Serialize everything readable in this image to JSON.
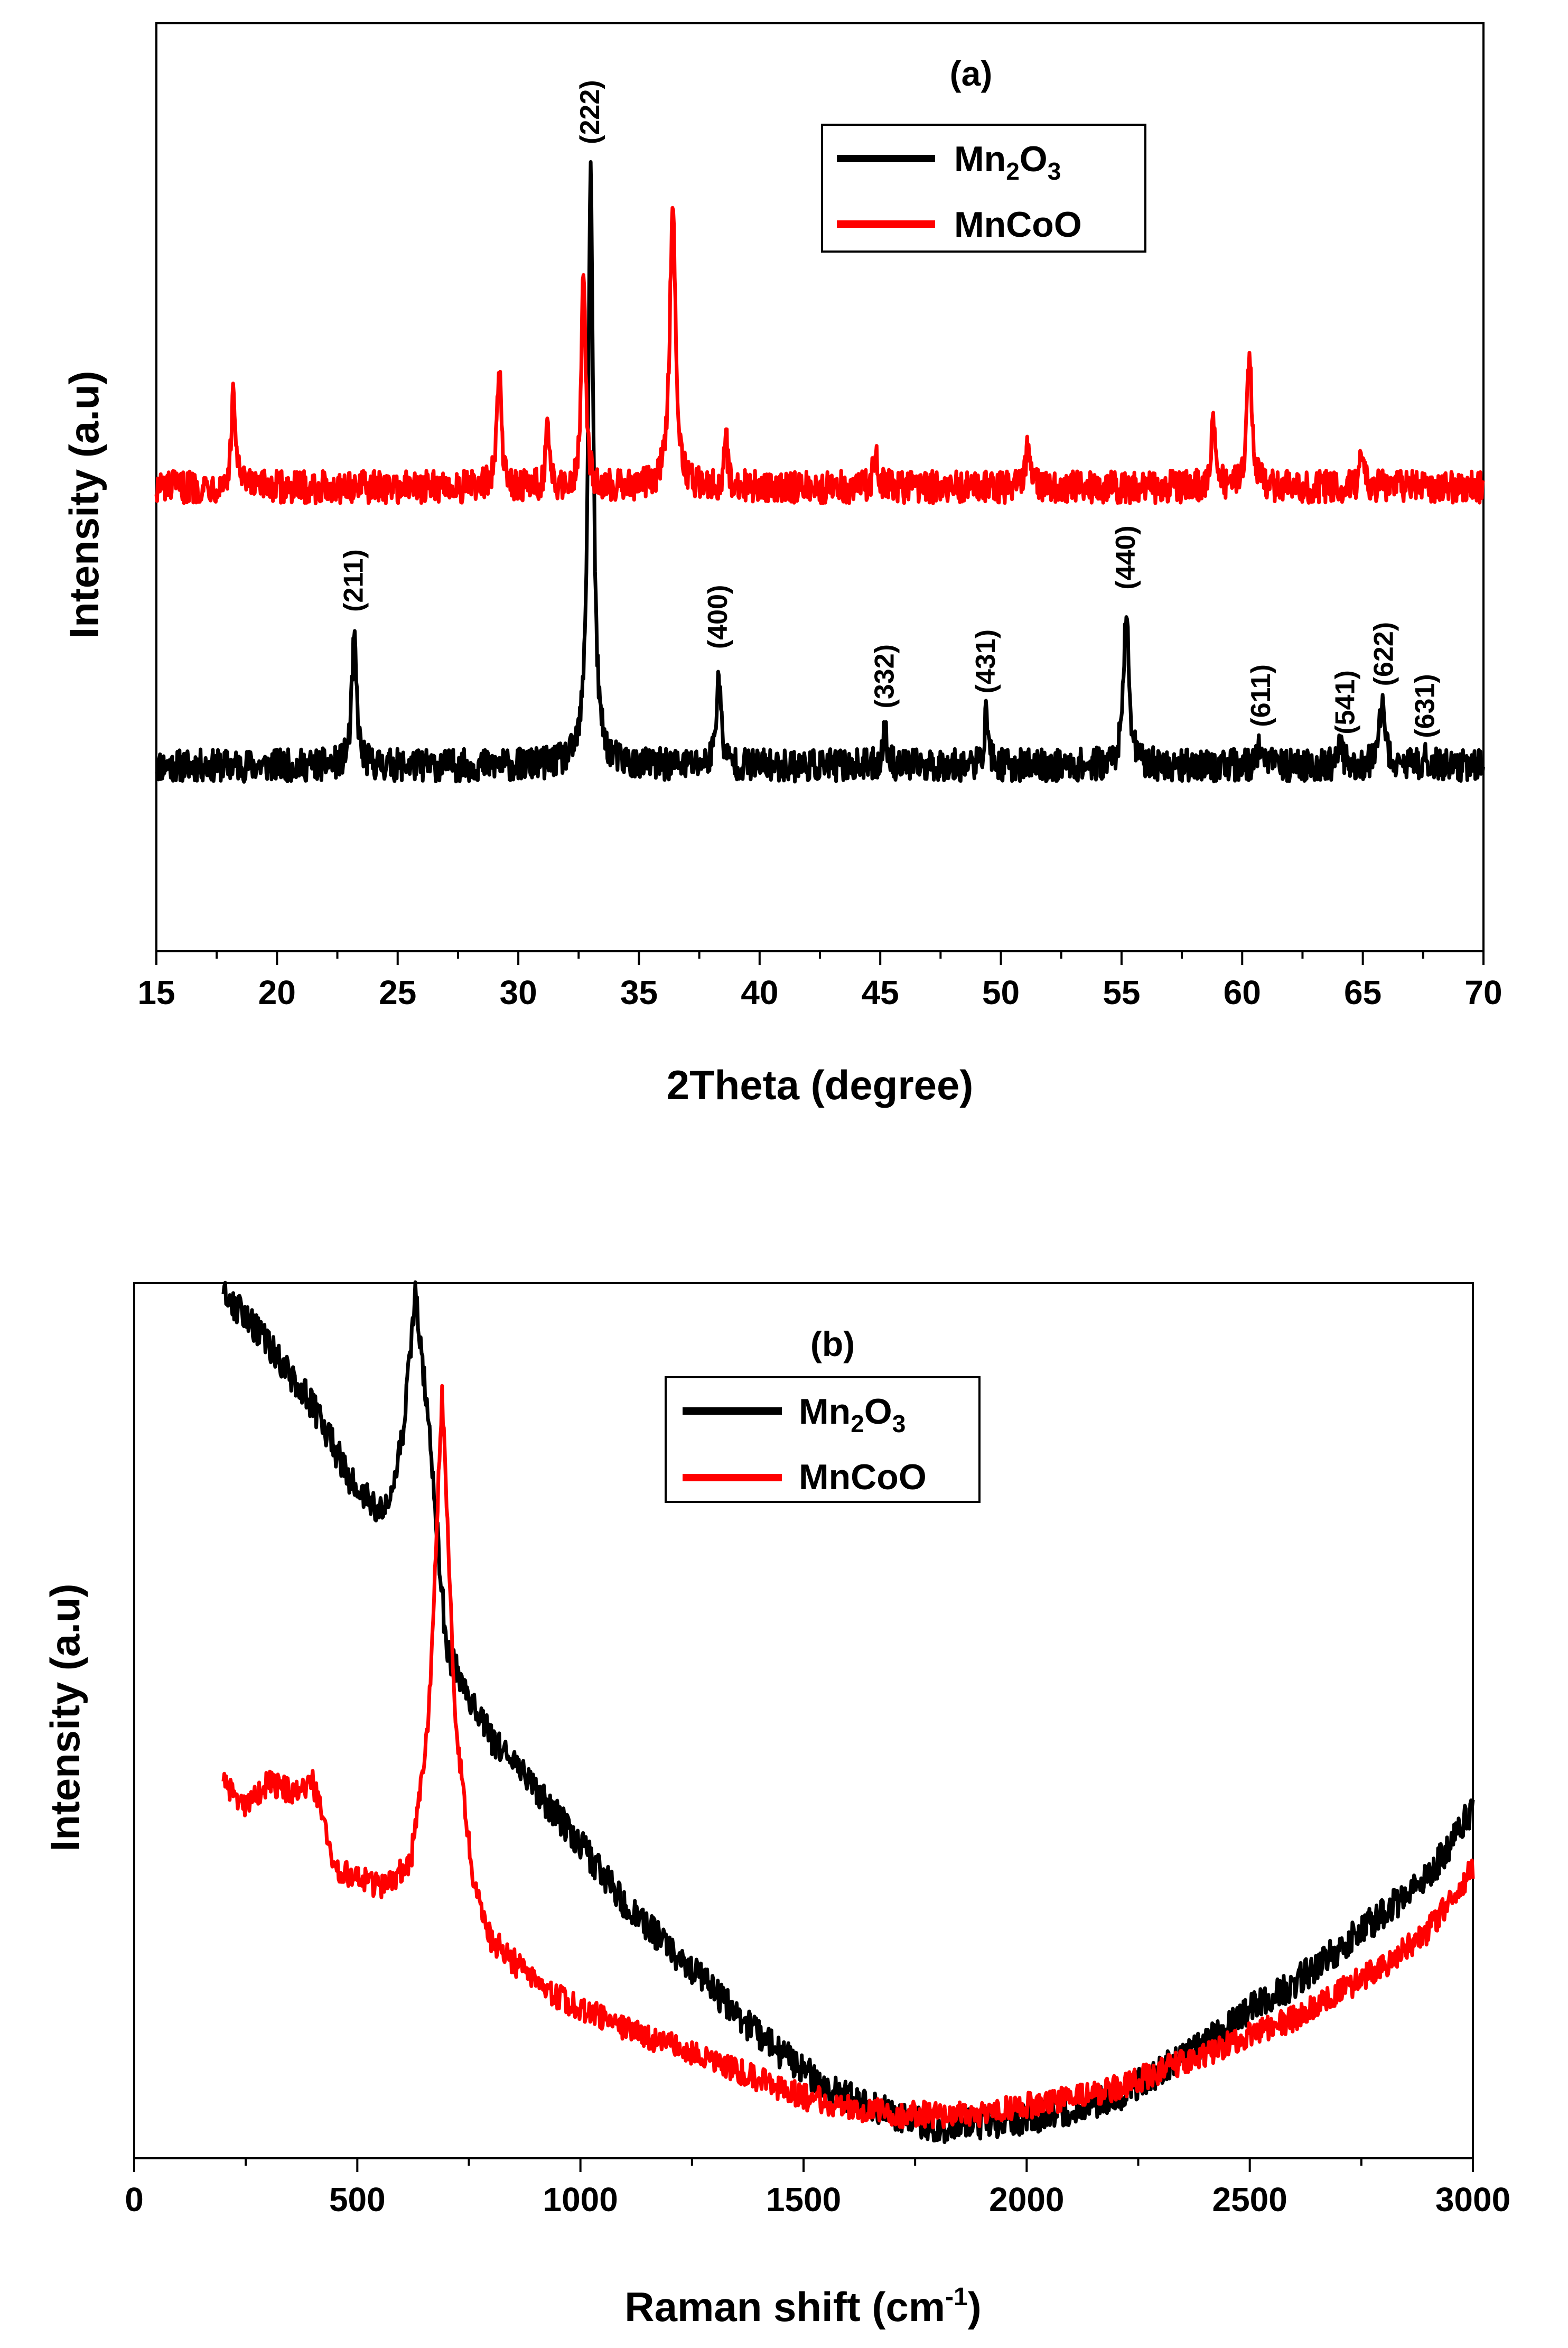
{
  "chart_data": [
    {
      "panel_label": "(a)",
      "type": "line",
      "xlabel": "2Theta (degree)",
      "ylabel": "Intensity (a.u)",
      "xlim": [
        15,
        70
      ],
      "ylim": [
        -0.25,
        1.0
      ],
      "xticks": [
        15,
        20,
        25,
        30,
        35,
        40,
        45,
        50,
        55,
        60,
        65,
        70
      ],
      "legend": {
        "position": "top-center"
      },
      "series": [
        {
          "name": "Mn2O3",
          "label_parts": [
            "Mn",
            "2",
            "O",
            "3"
          ],
          "color": "#000000",
          "baseline": 0.0,
          "noise": 0.022,
          "peaks": [
            {
              "x": 23.2,
              "h": 0.17,
              "w": 0.12
            },
            {
              "x": 33.0,
              "h": 0.8,
              "w": 0.13
            },
            {
              "x": 38.3,
              "h": 0.12,
              "w": 0.12
            },
            {
              "x": 45.2,
              "h": 0.05,
              "w": 0.1
            },
            {
              "x": 49.4,
              "h": 0.07,
              "w": 0.1
            },
            {
              "x": 55.2,
              "h": 0.2,
              "w": 0.14
            },
            {
              "x": 60.7,
              "h": 0.03,
              "w": 0.1
            },
            {
              "x": 64.1,
              "h": 0.03,
              "w": 0.1
            },
            {
              "x": 65.8,
              "h": 0.08,
              "w": 0.14
            },
            {
              "x": 67.6,
              "h": 0.02,
              "w": 0.1
            }
          ]
        },
        {
          "name": "MnCoO",
          "label_parts": [
            "MnCoO"
          ],
          "color": "#ff0000",
          "baseline": 0.375,
          "noise": 0.022,
          "peaks": [
            {
              "x": 18.2,
              "h": 0.13,
              "w": 0.1
            },
            {
              "x": 29.2,
              "h": 0.17,
              "w": 0.1
            },
            {
              "x": 31.2,
              "h": 0.08,
              "w": 0.08
            },
            {
              "x": 32.7,
              "h": 0.3,
              "w": 0.1
            },
            {
              "x": 36.4,
              "h": 0.39,
              "w": 0.14
            },
            {
              "x": 38.6,
              "h": 0.07,
              "w": 0.08
            },
            {
              "x": 44.8,
              "h": 0.05,
              "w": 0.1
            },
            {
              "x": 51.1,
              "h": 0.05,
              "w": 0.1
            },
            {
              "x": 58.8,
              "h": 0.09,
              "w": 0.1
            },
            {
              "x": 60.3,
              "h": 0.18,
              "w": 0.12
            },
            {
              "x": 65.0,
              "h": 0.06,
              "w": 0.1
            }
          ]
        }
      ],
      "peak_labels": [
        {
          "x": 23.2,
          "y": 0.2,
          "text": "(211)"
        },
        {
          "x": 33.0,
          "y": 0.83,
          "text": "(222)"
        },
        {
          "x": 38.3,
          "y": 0.15,
          "text": "(400)"
        },
        {
          "x": 45.2,
          "y": 0.07,
          "text": "(332)"
        },
        {
          "x": 49.4,
          "y": 0.09,
          "text": "(431)"
        },
        {
          "x": 55.2,
          "y": 0.23,
          "text": "(440)"
        },
        {
          "x": 60.8,
          "y": 0.045,
          "text": "(611)"
        },
        {
          "x": 64.3,
          "y": 0.035,
          "text": "(541)"
        },
        {
          "x": 65.9,
          "y": 0.1,
          "text": "(622)"
        },
        {
          "x": 67.6,
          "y": 0.03,
          "text": "(631)"
        }
      ]
    },
    {
      "panel_label": "(b)",
      "type": "line",
      "xlabel": "Raman shift (cm",
      "xlabel_sup": "-1",
      "xlabel_end": ")",
      "ylabel": "Intensity (a.u)",
      "xlim": [
        0,
        3000
      ],
      "ylim": [
        0,
        1.0
      ],
      "xticks": [
        0,
        500,
        1000,
        1500,
        2000,
        2500,
        3000
      ],
      "legend": {
        "position": "top-center"
      },
      "series": [
        {
          "name": "Mn2O3",
          "label_parts": [
            "Mn",
            "2",
            "O",
            "3"
          ],
          "color": "#000000",
          "noise": 0.018,
          "x": [
            200,
            300,
            400,
            500,
            560,
            600,
            630,
            660,
            700,
            800,
            900,
            1000,
            1100,
            1200,
            1300,
            1400,
            1500,
            1600,
            1700,
            1800,
            1900,
            2000,
            2100,
            2200,
            2300,
            2400,
            2500,
            2600,
            2700,
            2800,
            2900,
            3000
          ],
          "y": [
            0.99,
            0.93,
            0.86,
            0.76,
            0.74,
            0.82,
            0.99,
            0.84,
            0.58,
            0.48,
            0.42,
            0.36,
            0.29,
            0.24,
            0.19,
            0.14,
            0.1,
            0.07,
            0.05,
            0.035,
            0.04,
            0.045,
            0.055,
            0.07,
            0.1,
            0.13,
            0.17,
            0.2,
            0.24,
            0.28,
            0.32,
            0.4
          ]
        },
        {
          "name": "MnCoO",
          "label_parts": [
            "MnCoO"
          ],
          "color": "#ff0000",
          "noise": 0.015,
          "x": [
            200,
            250,
            300,
            350,
            400,
            450,
            500,
            560,
            620,
            660,
            690,
            720,
            760,
            800,
            900,
            1000,
            1100,
            1200,
            1300,
            1400,
            1500,
            1600,
            1700,
            1800,
            1900,
            2000,
            2100,
            2200,
            2300,
            2400,
            2500,
            2600,
            2700,
            2800,
            2900,
            3000
          ],
          "y": [
            0.43,
            0.4,
            0.43,
            0.42,
            0.43,
            0.33,
            0.32,
            0.31,
            0.34,
            0.5,
            0.87,
            0.5,
            0.32,
            0.25,
            0.2,
            0.17,
            0.15,
            0.13,
            0.11,
            0.09,
            0.07,
            0.06,
            0.05,
            0.05,
            0.05,
            0.06,
            0.07,
            0.08,
            0.1,
            0.12,
            0.14,
            0.16,
            0.19,
            0.22,
            0.26,
            0.33
          ]
        }
      ]
    }
  ]
}
